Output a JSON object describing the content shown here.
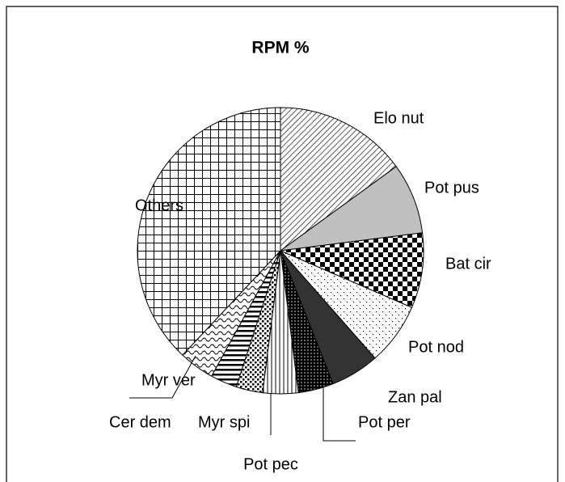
{
  "chart_data": {
    "type": "pie",
    "title": "RPM %",
    "categories": [
      "Elo nut",
      "Pot pus",
      "Bat cir",
      "Pot nod",
      "Zan pal",
      "Pot per",
      "Pot pec",
      "Myr spi",
      "Cer dem",
      "Myr ver",
      "Others"
    ],
    "values": [
      15,
      8,
      8.5,
      7,
      5.5,
      4,
      4,
      3,
      3,
      4,
      38
    ]
  }
}
